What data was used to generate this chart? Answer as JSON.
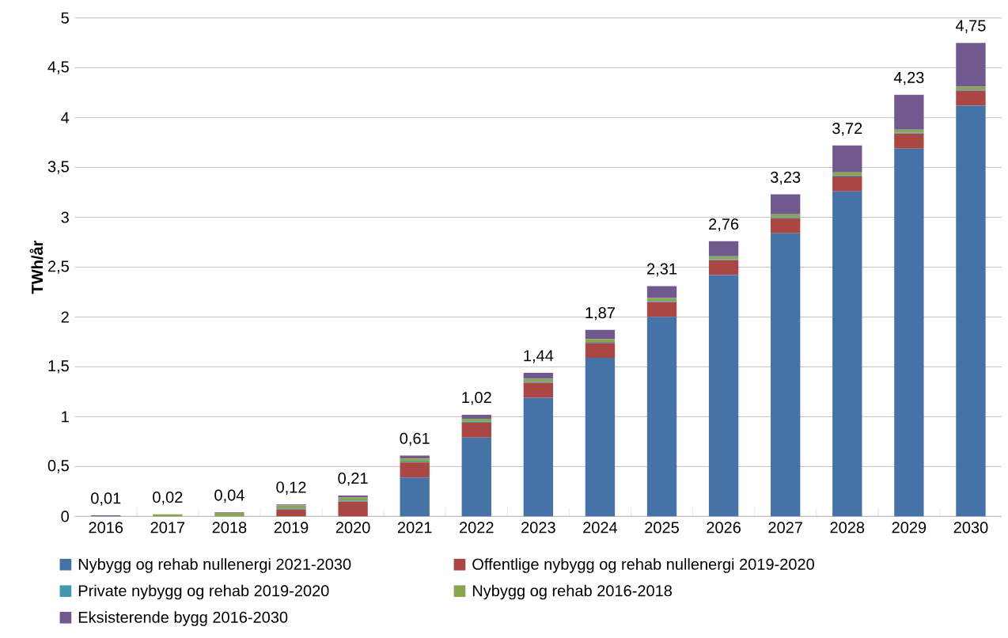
{
  "chart_data": {
    "type": "bar",
    "stacked": true,
    "ylabel": "TWh/år",
    "categories": [
      "2016",
      "2017",
      "2018",
      "2019",
      "2020",
      "2021",
      "2022",
      "2023",
      "2024",
      "2025",
      "2026",
      "2027",
      "2028",
      "2029",
      "2030"
    ],
    "series": [
      {
        "name": "Nybygg og rehab nullenergi 2021-2030",
        "color": "#4572a7",
        "values": [
          0,
          0,
          0,
          0,
          0,
          0.39,
          0.79,
          1.19,
          1.59,
          2.0,
          2.42,
          2.84,
          3.26,
          3.69,
          4.12
        ]
      },
      {
        "name": "Offentlige nybygg og rehab nullenergi 2019-2020",
        "color": "#aa4643",
        "values": [
          0,
          0,
          0,
          0.07,
          0.15,
          0.15,
          0.15,
          0.15,
          0.15,
          0.15,
          0.15,
          0.15,
          0.15,
          0.15,
          0.15
        ]
      },
      {
        "name": "Private nybygg og rehab 2019-2020",
        "color": "#4198af",
        "values": [
          0,
          0,
          0,
          0.01,
          0.01,
          0.01,
          0.01,
          0.01,
          0.01,
          0.01,
          0.01,
          0.01,
          0.01,
          0.01,
          0.01
        ]
      },
      {
        "name": "Nybygg og rehab 2016-2018",
        "color": "#89a54e",
        "values": [
          0,
          0.02,
          0.035,
          0.03,
          0.03,
          0.03,
          0.03,
          0.03,
          0.03,
          0.03,
          0.03,
          0.03,
          0.03,
          0.03,
          0.03
        ]
      },
      {
        "name": "Eksisterende bygg 2016-2030",
        "color": "#71588f",
        "values": [
          0.01,
          0,
          0.005,
          0.01,
          0.02,
          0.03,
          0.04,
          0.06,
          0.09,
          0.12,
          0.15,
          0.2,
          0.27,
          0.35,
          0.44
        ]
      }
    ],
    "totals": [
      "0,01",
      "0,02",
      "0,04",
      "0,12",
      "0,21",
      "0,61",
      "1,02",
      "1,44",
      "1,87",
      "2,31",
      "2,76",
      "3,23",
      "3,72",
      "4,23",
      "4,75"
    ],
    "ylim": [
      0,
      5
    ],
    "yticks": [
      0,
      {
        "value": 0.5,
        "label": "0,5"
      },
      1,
      {
        "value": 1.5,
        "label": "1,5"
      },
      2,
      {
        "value": 2.5,
        "label": "2,5"
      },
      3,
      {
        "value": 3.5,
        "label": "3,5"
      },
      4,
      {
        "value": 4.5,
        "label": "4,5"
      },
      5
    ],
    "grid": "y",
    "legend": "bottom"
  }
}
